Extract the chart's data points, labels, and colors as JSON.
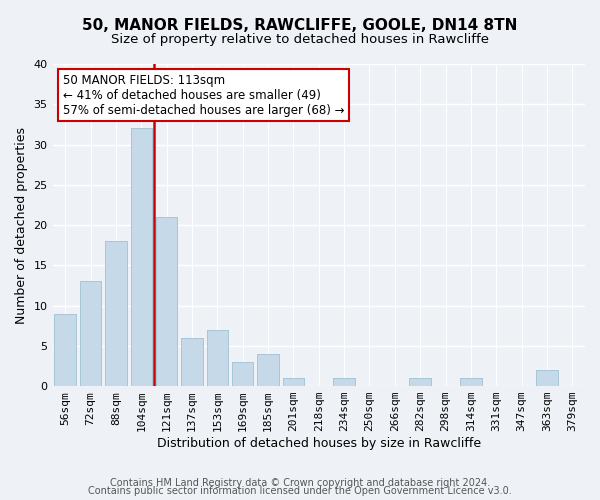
{
  "title": "50, MANOR FIELDS, RAWCLIFFE, GOOLE, DN14 8TN",
  "subtitle": "Size of property relative to detached houses in Rawcliffe",
  "xlabel": "Distribution of detached houses by size in Rawcliffe",
  "ylabel": "Number of detached properties",
  "bar_labels": [
    "56sqm",
    "72sqm",
    "88sqm",
    "104sqm",
    "121sqm",
    "137sqm",
    "153sqm",
    "169sqm",
    "185sqm",
    "201sqm",
    "218sqm",
    "234sqm",
    "250sqm",
    "266sqm",
    "282sqm",
    "298sqm",
    "314sqm",
    "331sqm",
    "347sqm",
    "363sqm",
    "379sqm"
  ],
  "bar_values": [
    9,
    13,
    18,
    32,
    21,
    6,
    7,
    3,
    4,
    1,
    0,
    1,
    0,
    0,
    1,
    0,
    1,
    0,
    0,
    2,
    0
  ],
  "bar_color": "#c6d9e8",
  "bar_edge_color": "#a8c4d8",
  "vline_color": "#cc0000",
  "annotation_line1": "50 MANOR FIELDS: 113sqm",
  "annotation_line2": "← 41% of detached houses are smaller (49)",
  "annotation_line3": "57% of semi-detached houses are larger (68) →",
  "annotation_box_color": "#ffffff",
  "annotation_box_edge": "#cc0000",
  "ylim": [
    0,
    40
  ],
  "yticks": [
    0,
    5,
    10,
    15,
    20,
    25,
    30,
    35,
    40
  ],
  "footer1": "Contains HM Land Registry data © Crown copyright and database right 2024.",
  "footer2": "Contains public sector information licensed under the Open Government Licence v3.0.",
  "background_color": "#eef2f7",
  "grid_color": "#ffffff",
  "title_fontsize": 11,
  "subtitle_fontsize": 9.5,
  "xlabel_fontsize": 9,
  "ylabel_fontsize": 9,
  "tick_fontsize": 8,
  "annotation_fontsize": 8.5,
  "footer_fontsize": 7
}
